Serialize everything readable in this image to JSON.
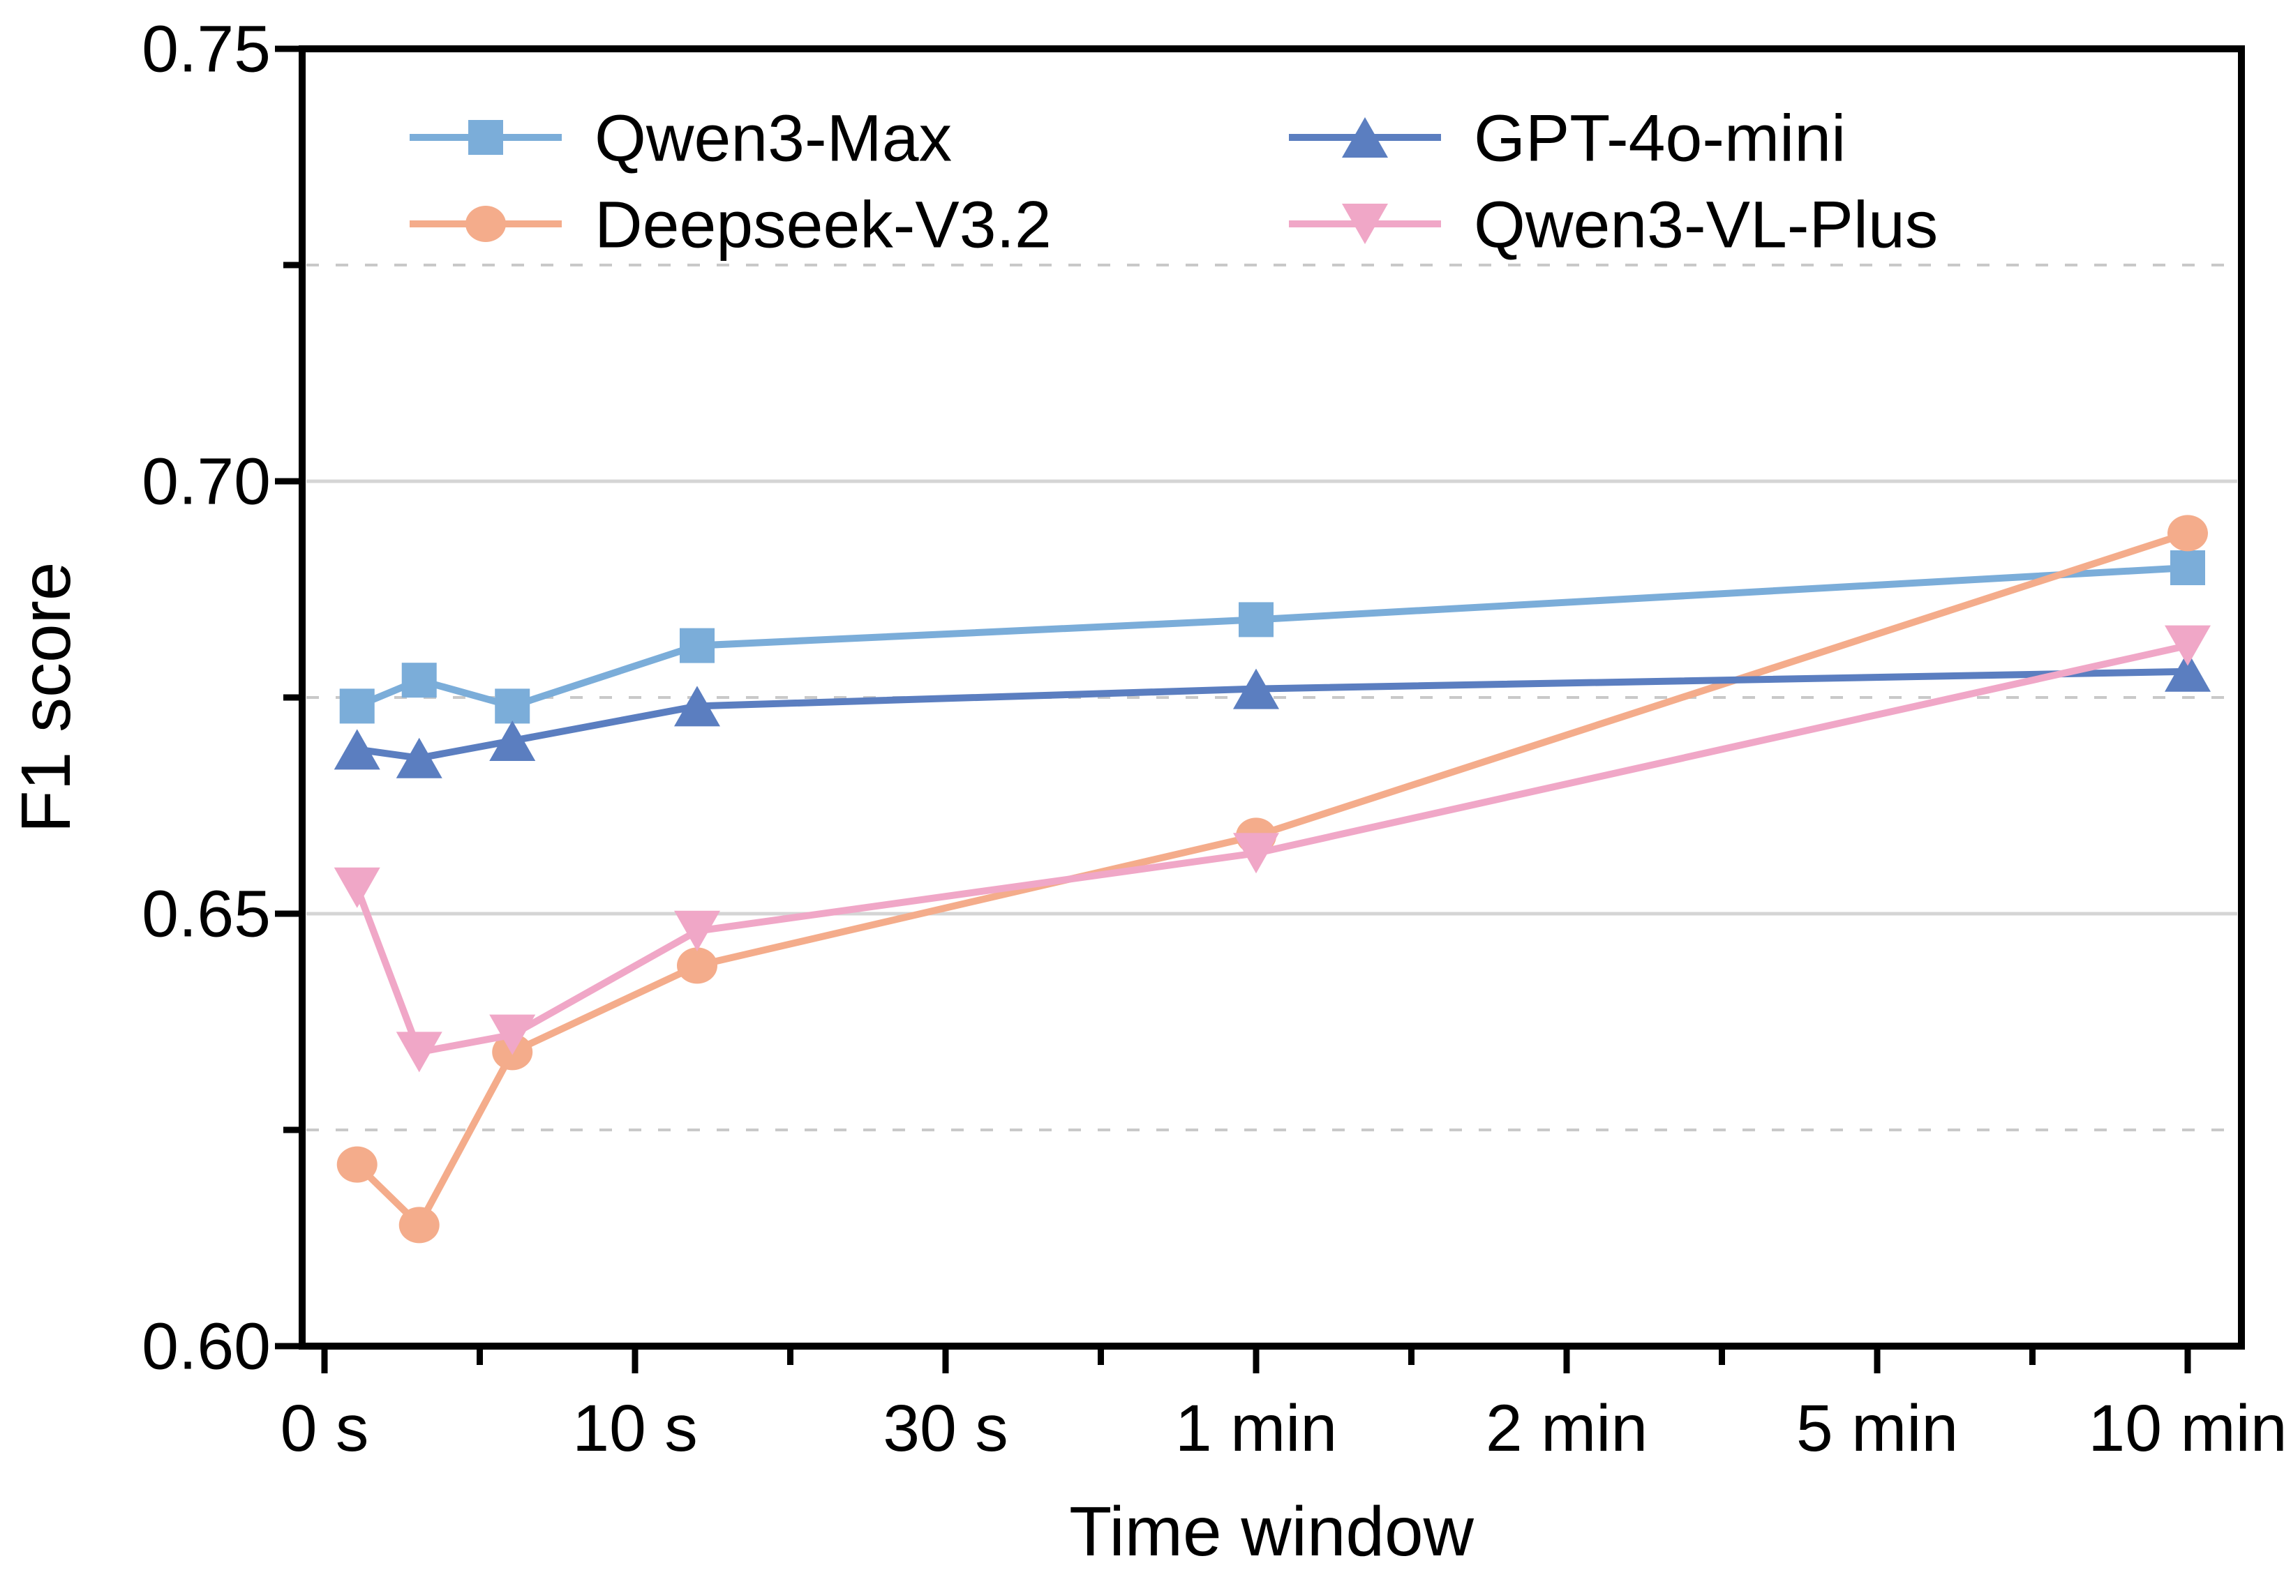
{
  "chart_data": {
    "type": "line",
    "title": "",
    "xlabel": "Time window",
    "ylabel": "F1 score",
    "x_axis": {
      "n_slots": 13,
      "labeled_slots": [
        0,
        2,
        4,
        6,
        8,
        10,
        12
      ],
      "tick_labels": [
        "0 s",
        "10 s",
        "30 s",
        "1 min",
        "2 min",
        "5 min",
        "10 min"
      ],
      "minor_slots": [
        1,
        3,
        5,
        7,
        9,
        11
      ]
    },
    "y_axis": {
      "min": 0.6,
      "max": 0.75,
      "major_ticks": [
        0.6,
        0.65,
        0.7,
        0.75
      ],
      "major_labels": [
        "0.60",
        "0.65",
        "0.70",
        "0.75"
      ],
      "minor_ticks": [
        0.625,
        0.675,
        0.725
      ]
    },
    "gridlines": {
      "solid_values": [
        0.65,
        0.7
      ],
      "dashed_values": [
        0.625,
        0.675,
        0.725
      ],
      "solid_color": "#d5d5d5",
      "dashed_color": "#c9c9c9"
    },
    "x_slots": [
      0.21,
      0.61,
      1.21,
      2.4,
      6,
      12
    ],
    "series": [
      {
        "name": "Qwen3-Max",
        "color": "#7BADD9",
        "marker": "square",
        "values": [
          0.674,
          0.677,
          0.674,
          0.681,
          0.684,
          0.69
        ]
      },
      {
        "name": "Deepseek-V3.2",
        "color": "#F4AC8B",
        "marker": "circle",
        "values": [
          0.621,
          0.614,
          0.634,
          0.644,
          0.659,
          0.694
        ]
      },
      {
        "name": "GPT-4o-mini",
        "color": "#5B7EC0",
        "marker": "triangle-up",
        "values": [
          0.669,
          0.668,
          0.67,
          0.674,
          0.676,
          0.678
        ]
      },
      {
        "name": "Qwen3-VL-Plus",
        "color": "#F0A7C7",
        "marker": "triangle-down",
        "values": [
          0.653,
          0.634,
          0.636,
          0.648,
          0.657,
          0.681
        ]
      }
    ],
    "legend": {
      "position": "top",
      "frame": false,
      "columns": [
        [
          "Qwen3-Max",
          "Deepseek-V3.2"
        ],
        [
          "GPT-4o-mini",
          "Qwen3-VL-Plus"
        ]
      ]
    },
    "axis_color": "#000000"
  }
}
